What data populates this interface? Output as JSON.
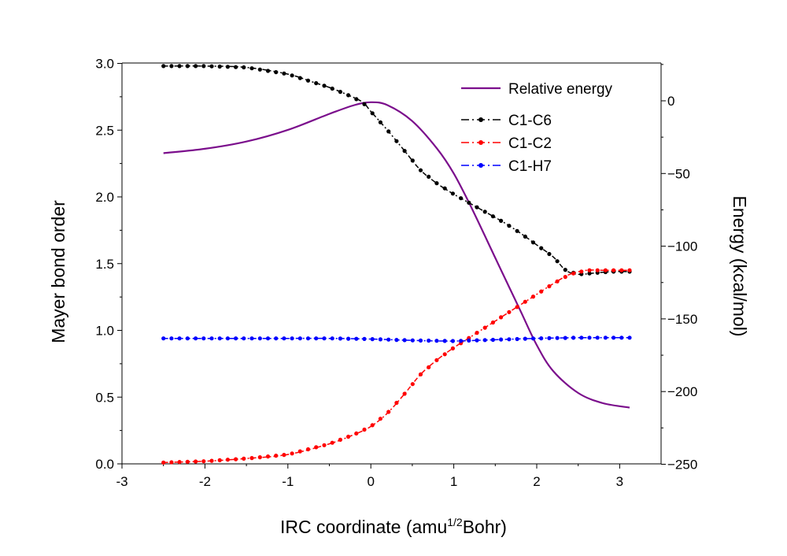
{
  "chart_data": {
    "type": "line",
    "xlabel": "IRC coordinate (amu",
    "xlabel_sup": "1/2",
    "xlabel_tail": "Bohr)",
    "ylabel": "Mayer bond order",
    "y2label": "Energy (kcal/mol)",
    "xlim": [
      -3,
      3.5
    ],
    "ylim": [
      0,
      3.0
    ],
    "y2lim": [
      -250,
      25
    ],
    "xticks": [
      -3,
      -2,
      -1,
      0,
      1,
      2,
      3
    ],
    "yticks": [
      "0.0",
      "0.5",
      "1.0",
      "1.5",
      "2.0",
      "2.5",
      "3.0"
    ],
    "y2ticks": [
      0,
      -50,
      -100,
      -150,
      -200,
      -250
    ],
    "grid": false,
    "legend_position": "top-right",
    "series": [
      {
        "name": "Relative energy",
        "axis": "right",
        "color": "#7B0E8C",
        "style": "line",
        "x": [
          -2.5,
          -2.0,
          -1.5,
          -1.0,
          -0.5,
          -0.2,
          0.0,
          0.2,
          0.5,
          0.8,
          1.0,
          1.2,
          1.5,
          1.8,
          2.0,
          2.2,
          2.5,
          2.8,
          3.12
        ],
        "y": [
          -36,
          -33,
          -28,
          -20,
          -9,
          -3,
          -1,
          -3,
          -14,
          -33,
          -50,
          -72,
          -108,
          -144,
          -168,
          -186,
          -201,
          -208,
          -211
        ]
      },
      {
        "name": "C1-C6",
        "axis": "left",
        "color": "#000000",
        "style": "dash-dot",
        "x": [
          -2.5,
          -2.0,
          -1.5,
          -1.0,
          -0.7,
          -0.5,
          -0.3,
          -0.1,
          0.0,
          0.2,
          0.4,
          0.6,
          0.8,
          1.0,
          1.2,
          1.4,
          1.6,
          1.8,
          2.0,
          2.2,
          2.35,
          2.5,
          2.7,
          2.9,
          3.12
        ],
        "y": [
          2.98,
          2.98,
          2.97,
          2.92,
          2.86,
          2.82,
          2.77,
          2.71,
          2.64,
          2.5,
          2.35,
          2.2,
          2.1,
          2.02,
          1.95,
          1.88,
          1.81,
          1.73,
          1.64,
          1.55,
          1.45,
          1.42,
          1.43,
          1.44,
          1.44
        ]
      },
      {
        "name": "C1-C2",
        "axis": "left",
        "color": "#FF0000",
        "style": "dash-dot",
        "x": [
          -2.5,
          -2.0,
          -1.5,
          -1.0,
          -0.5,
          -0.2,
          0.0,
          0.2,
          0.4,
          0.6,
          0.8,
          1.0,
          1.2,
          1.4,
          1.6,
          1.8,
          2.0,
          2.2,
          2.4,
          2.6,
          2.8,
          3.0,
          3.12
        ],
        "y": [
          0.01,
          0.02,
          0.04,
          0.07,
          0.15,
          0.22,
          0.28,
          0.38,
          0.52,
          0.67,
          0.78,
          0.87,
          0.95,
          1.03,
          1.11,
          1.19,
          1.27,
          1.35,
          1.42,
          1.45,
          1.45,
          1.45,
          1.45
        ]
      },
      {
        "name": "C1-H7",
        "axis": "left",
        "color": "#0000FF",
        "style": "dash-dot",
        "x": [
          -2.5,
          -2.0,
          -1.5,
          -1.0,
          -0.5,
          0.0,
          0.5,
          1.0,
          1.5,
          2.0,
          2.5,
          3.12
        ],
        "y": [
          0.94,
          0.94,
          0.94,
          0.94,
          0.94,
          0.935,
          0.925,
          0.92,
          0.93,
          0.94,
          0.945,
          0.945
        ]
      }
    ]
  }
}
